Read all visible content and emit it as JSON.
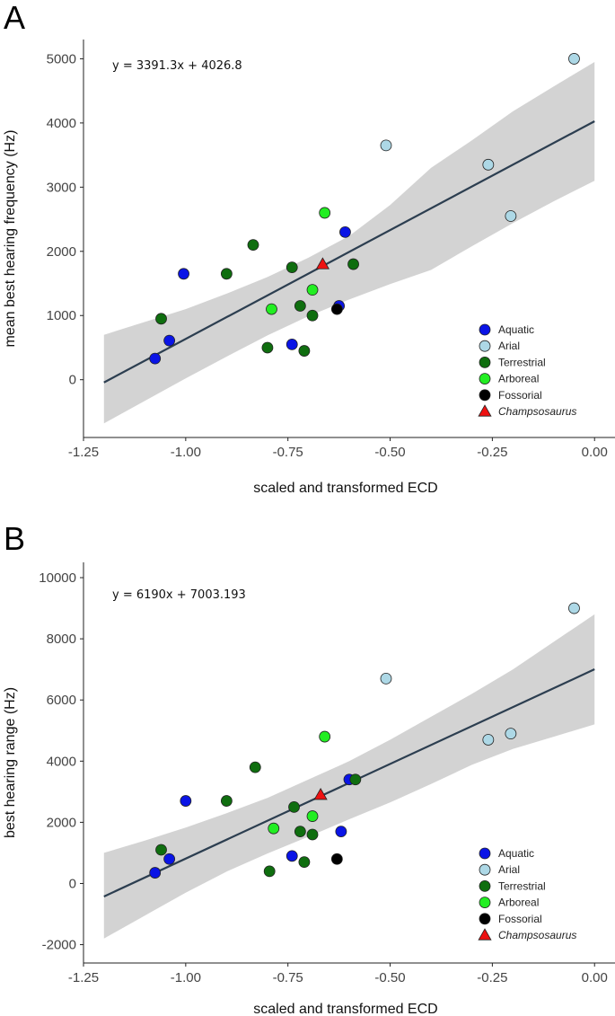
{
  "chart_data": [
    {
      "panel": "A",
      "type": "scatter",
      "equation": "y = 3391.3x + 4026.8",
      "xlabel": "scaled and transformed ECD",
      "ylabel": "mean best hearing frequency (Hz)",
      "xlim": [
        -1.25,
        0.05
      ],
      "ylim": [
        -900,
        5300
      ],
      "xticks": [
        -1.25,
        -1.0,
        -0.75,
        -0.5,
        -0.25,
        0.0
      ],
      "xtick_labels": [
        "-1.25",
        "-1.00",
        "-0.75",
        "-0.50",
        "-0.25",
        "0.00"
      ],
      "yticks": [
        0,
        1000,
        2000,
        3000,
        4000,
        5000
      ],
      "ytick_labels": [
        "0",
        "1000",
        "2000",
        "3000",
        "4000",
        "5000"
      ],
      "regression": {
        "slope": 3391.3,
        "intercept": 4026.8,
        "x_range": [
          -1.2,
          0.0
        ]
      },
      "confidence_band": {
        "x": [
          -1.2,
          -1.1,
          -1.0,
          -0.9,
          -0.8,
          -0.7,
          -0.6,
          -0.5,
          -0.4,
          -0.3,
          -0.2,
          -0.1,
          0.0
        ],
        "lower": [
          -680,
          -330,
          20,
          360,
          690,
          990,
          1250,
          1490,
          1710,
          2080,
          2440,
          2780,
          3100
        ],
        "upper": [
          700,
          900,
          1100,
          1340,
          1600,
          1900,
          2240,
          2720,
          3300,
          3730,
          4180,
          4570,
          4950
        ]
      },
      "series": [
        {
          "name": "Aquatic",
          "color": "#0a14e6",
          "marker": "circle",
          "points": [
            [
              -1.075,
              330
            ],
            [
              -1.04,
              610
            ],
            [
              -1.005,
              1650
            ],
            [
              -0.74,
              550
            ],
            [
              -0.625,
              1150
            ],
            [
              -0.61,
              2300
            ]
          ]
        },
        {
          "name": "Arial",
          "color": "#add8e6",
          "marker": "circle",
          "points": [
            [
              -0.51,
              3650
            ],
            [
              -0.26,
              3350
            ],
            [
              -0.205,
              2550
            ],
            [
              -0.05,
              5000
            ]
          ]
        },
        {
          "name": "Terrestrial",
          "color": "#0f6e0f",
          "marker": "circle",
          "points": [
            [
              -1.06,
              950
            ],
            [
              -0.9,
              1650
            ],
            [
              -0.835,
              2100
            ],
            [
              -0.8,
              500
            ],
            [
              -0.74,
              1750
            ],
            [
              -0.72,
              1150
            ],
            [
              -0.71,
              450
            ],
            [
              -0.69,
              1000
            ],
            [
              -0.59,
              1800
            ]
          ]
        },
        {
          "name": "Arboreal",
          "color": "#22ee22",
          "marker": "circle",
          "points": [
            [
              -0.79,
              1100
            ],
            [
              -0.69,
              1400
            ],
            [
              -0.66,
              2600
            ]
          ]
        },
        {
          "name": "Fossorial",
          "color": "#000000",
          "marker": "circle",
          "points": [
            [
              -0.63,
              1100
            ]
          ]
        },
        {
          "name": "Champsosaurus",
          "color": "#ee1111",
          "marker": "triangle",
          "italic": true,
          "points": [
            [
              -0.665,
              1800
            ]
          ]
        }
      ]
    },
    {
      "panel": "B",
      "type": "scatter",
      "equation": "y = 6190x + 7003.193",
      "xlabel": "scaled and transformed ECD",
      "ylabel": "best hearing range (Hz)",
      "xlim": [
        -1.25,
        0.05
      ],
      "ylim": [
        -2600,
        10500
      ],
      "xticks": [
        -1.25,
        -1.0,
        -0.75,
        -0.5,
        -0.25,
        0.0
      ],
      "xtick_labels": [
        "-1.25",
        "-1.00",
        "-0.75",
        "-0.50",
        "-0.25",
        "0.00"
      ],
      "yticks": [
        -2000,
        0,
        2000,
        4000,
        6000,
        8000,
        10000
      ],
      "ytick_labels": [
        "-2000",
        "0",
        "2000",
        "4000",
        "6000",
        "8000",
        "10000"
      ],
      "regression": {
        "slope": 6190,
        "intercept": 7003.193,
        "x_range": [
          -1.2,
          0.0
        ]
      },
      "confidence_band": {
        "x": [
          -1.2,
          -1.1,
          -1.0,
          -0.9,
          -0.8,
          -0.7,
          -0.6,
          -0.5,
          -0.4,
          -0.3,
          -0.2,
          -0.1,
          0.0
        ],
        "lower": [
          -1800,
          -1050,
          -300,
          390,
          980,
          1530,
          2100,
          2650,
          3250,
          3880,
          4400,
          4800,
          5200
        ],
        "upper": [
          1000,
          1400,
          1830,
          2300,
          2800,
          3400,
          4000,
          4700,
          5450,
          6200,
          7000,
          7900,
          8800
        ]
      },
      "series": [
        {
          "name": "Aquatic",
          "color": "#0a14e6",
          "marker": "circle",
          "points": [
            [
              -1.075,
              350
            ],
            [
              -1.04,
              800
            ],
            [
              -1.0,
              2700
            ],
            [
              -0.74,
              900
            ],
            [
              -0.62,
              1700
            ],
            [
              -0.6,
              3400
            ]
          ]
        },
        {
          "name": "Arial",
          "color": "#add8e6",
          "marker": "circle",
          "points": [
            [
              -0.51,
              6700
            ],
            [
              -0.26,
              4700
            ],
            [
              -0.205,
              4900
            ],
            [
              -0.05,
              9000
            ]
          ]
        },
        {
          "name": "Terrestrial",
          "color": "#0f6e0f",
          "marker": "circle",
          "points": [
            [
              -1.06,
              1100
            ],
            [
              -0.9,
              2700
            ],
            [
              -0.83,
              3800
            ],
            [
              -0.795,
              400
            ],
            [
              -0.735,
              2500
            ],
            [
              -0.72,
              1700
            ],
            [
              -0.71,
              700
            ],
            [
              -0.69,
              1600
            ],
            [
              -0.585,
              3400
            ]
          ]
        },
        {
          "name": "Arboreal",
          "color": "#22ee22",
          "marker": "circle",
          "points": [
            [
              -0.785,
              1800
            ],
            [
              -0.69,
              2200
            ],
            [
              -0.66,
              4800
            ]
          ]
        },
        {
          "name": "Fossorial",
          "color": "#000000",
          "marker": "circle",
          "points": [
            [
              -0.63,
              800
            ]
          ]
        },
        {
          "name": "Champsosaurus",
          "color": "#ee1111",
          "marker": "triangle",
          "italic": true,
          "points": [
            [
              -0.67,
              2900
            ]
          ]
        }
      ]
    }
  ]
}
